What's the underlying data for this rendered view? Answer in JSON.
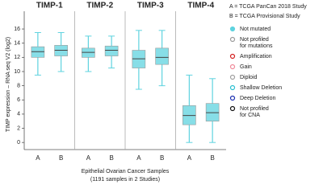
{
  "chart_data": {
    "type": "box",
    "y_label": "TIMP expression – RNA seq V2 (log2)",
    "x_label_lines": [
      "Epithelial Ovarian Cancer Samples",
      "(1191 samples in 2 Studies)"
    ],
    "ylim": [
      -1,
      18.5
    ],
    "yticks": [
      0,
      2,
      4,
      6,
      8,
      10,
      12,
      14,
      16
    ],
    "box_color": "#5fd3df",
    "panels": [
      {
        "title": "TIMP-1",
        "categories": [
          "A",
          "B"
        ],
        "boxes": [
          {
            "min": 9.5,
            "q1": 12,
            "median": 12.8,
            "q3": 13.5,
            "max": 15.5
          },
          {
            "min": 10,
            "q1": 12.2,
            "median": 13,
            "q3": 13.7,
            "max": 15.5
          }
        ]
      },
      {
        "title": "TIMP-2",
        "categories": [
          "A",
          "B"
        ],
        "boxes": [
          {
            "min": 10,
            "q1": 12,
            "median": 12.7,
            "q3": 13.3,
            "max": 15
          },
          {
            "min": 10.5,
            "q1": 12.2,
            "median": 13,
            "q3": 13.6,
            "max": 15
          }
        ]
      },
      {
        "title": "TIMP-3",
        "categories": [
          "A",
          "B"
        ],
        "boxes": [
          {
            "min": 7.5,
            "q1": 10.5,
            "median": 11.8,
            "q3": 13,
            "max": 15.8
          },
          {
            "min": 8,
            "q1": 11,
            "median": 12,
            "q3": 13.3,
            "max": 15.8
          }
        ]
      },
      {
        "title": "TIMP-4",
        "categories": [
          "A",
          "B"
        ],
        "boxes": [
          {
            "min": 0,
            "q1": 2.5,
            "median": 3.8,
            "q3": 5.2,
            "max": 9.5
          },
          {
            "min": 0,
            "q1": 3,
            "median": 4.2,
            "q3": 5.5,
            "max": 9
          }
        ]
      }
    ],
    "study_notes": [
      "A = TCGA PanCan 2018 Study",
      "B = TCGA Provisional Study"
    ],
    "legend": [
      {
        "label_lines": [
          "Not mutated"
        ],
        "color": "#5fd3df",
        "filled": true
      },
      {
        "label_lines": [
          "Not profiled",
          "for mutations"
        ],
        "color": "#9a9a9a",
        "filled": false
      },
      {
        "label_lines": [
          "Amplification"
        ],
        "color": "#d42020",
        "filled": false
      },
      {
        "label_lines": [
          "Gain"
        ],
        "color": "#f08a9a",
        "filled": false
      },
      {
        "label_lines": [
          "Diploid"
        ],
        "color": "#a0a0a0",
        "filled": false
      },
      {
        "label_lines": [
          "Shallow Deletion"
        ],
        "color": "#2bbfd0",
        "filled": false
      },
      {
        "label_lines": [
          "Deep Deletion"
        ],
        "color": "#1b2fb0",
        "filled": false
      },
      {
        "label_lines": [
          "Not profiled",
          "for CNA"
        ],
        "color": "#111111",
        "filled": false
      }
    ]
  }
}
